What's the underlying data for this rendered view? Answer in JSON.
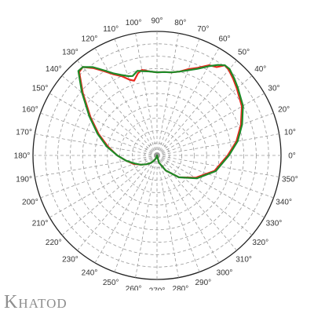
{
  "brand": {
    "text": "Khatod"
  },
  "chart_data": {
    "type": "polar-line",
    "title": "",
    "angular_unit": "degrees",
    "angle_labels": [
      "0°",
      "10°",
      "20°",
      "30°",
      "40°",
      "50°",
      "60°",
      "70°",
      "80°",
      "90°",
      "100°",
      "110°",
      "120°",
      "130°",
      "140°",
      "150°",
      "160°",
      "170°",
      "180°",
      "190°",
      "200°",
      "210°",
      "220°",
      "230°",
      "240°",
      "250°",
      "260°",
      "270°",
      "280°",
      "290°",
      "300°",
      "310°",
      "320°",
      "330°",
      "340°",
      "350°"
    ],
    "radial_range": [
      0,
      1
    ],
    "radial_ticks": [
      0.1,
      0.2,
      0.3,
      0.4,
      0.5,
      0.6,
      0.7,
      0.8,
      0.9,
      1.0
    ],
    "grid": true,
    "series": [
      {
        "color": "#e8281e",
        "points": [
          [
            270,
            0.0
          ],
          [
            285,
            0.06
          ],
          [
            300,
            0.14
          ],
          [
            315,
            0.25
          ],
          [
            330,
            0.36
          ],
          [
            345,
            0.48
          ],
          [
            0,
            0.57
          ],
          [
            10,
            0.65
          ],
          [
            20,
            0.72
          ],
          [
            30,
            0.79
          ],
          [
            40,
            0.84
          ],
          [
            45,
            0.87
          ],
          [
            50,
            0.9
          ],
          [
            53,
            0.91
          ],
          [
            56,
            0.86
          ],
          [
            60,
            0.84
          ],
          [
            65,
            0.78
          ],
          [
            70,
            0.74
          ],
          [
            75,
            0.7
          ],
          [
            80,
            0.68
          ],
          [
            85,
            0.675
          ],
          [
            90,
            0.67
          ],
          [
            95,
            0.68
          ],
          [
            100,
            0.7
          ],
          [
            103,
            0.68
          ],
          [
            107,
            0.63
          ],
          [
            110,
            0.65
          ],
          [
            114,
            0.7
          ],
          [
            118,
            0.74
          ],
          [
            122,
            0.8
          ],
          [
            126,
            0.87
          ],
          [
            130,
            0.93
          ],
          [
            133,
            0.92
          ],
          [
            140,
            0.78
          ],
          [
            150,
            0.62
          ],
          [
            160,
            0.5
          ],
          [
            170,
            0.4
          ],
          [
            180,
            0.32
          ],
          [
            190,
            0.25
          ],
          [
            200,
            0.2
          ],
          [
            210,
            0.15
          ],
          [
            220,
            0.11
          ],
          [
            230,
            0.08
          ],
          [
            240,
            0.05
          ],
          [
            255,
            0.02
          ],
          [
            270,
            0.0
          ]
        ]
      },
      {
        "color": "#1e8a28",
        "points": [
          [
            270,
            0.0
          ],
          [
            285,
            0.06
          ],
          [
            300,
            0.14
          ],
          [
            315,
            0.25
          ],
          [
            330,
            0.37
          ],
          [
            345,
            0.49
          ],
          [
            0,
            0.58
          ],
          [
            10,
            0.66
          ],
          [
            20,
            0.73
          ],
          [
            30,
            0.8
          ],
          [
            40,
            0.85
          ],
          [
            45,
            0.88
          ],
          [
            50,
            0.91
          ],
          [
            53,
            0.91
          ],
          [
            56,
            0.88
          ],
          [
            60,
            0.83
          ],
          [
            65,
            0.77
          ],
          [
            70,
            0.73
          ],
          [
            75,
            0.7
          ],
          [
            80,
            0.68
          ],
          [
            85,
            0.675
          ],
          [
            90,
            0.67
          ],
          [
            95,
            0.68
          ],
          [
            100,
            0.69
          ],
          [
            103,
            0.7
          ],
          [
            107,
            0.67
          ],
          [
            110,
            0.68
          ],
          [
            114,
            0.71
          ],
          [
            118,
            0.75
          ],
          [
            122,
            0.81
          ],
          [
            126,
            0.88
          ],
          [
            130,
            0.93
          ],
          [
            133,
            0.93
          ],
          [
            140,
            0.79
          ],
          [
            150,
            0.63
          ],
          [
            160,
            0.51
          ],
          [
            170,
            0.41
          ],
          [
            180,
            0.32
          ],
          [
            190,
            0.25
          ],
          [
            200,
            0.19
          ],
          [
            210,
            0.15
          ],
          [
            220,
            0.11
          ],
          [
            230,
            0.08
          ],
          [
            240,
            0.05
          ],
          [
            255,
            0.02
          ],
          [
            270,
            0.0
          ]
        ]
      }
    ]
  }
}
